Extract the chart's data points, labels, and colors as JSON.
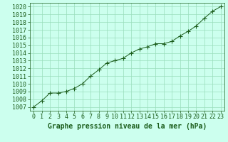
{
  "x": [
    0,
    1,
    2,
    3,
    4,
    5,
    6,
    7,
    8,
    9,
    10,
    11,
    12,
    13,
    14,
    15,
    16,
    17,
    18,
    19,
    20,
    21,
    22,
    23
  ],
  "y": [
    1007.0,
    1007.8,
    1008.8,
    1008.8,
    1009.0,
    1009.4,
    1010.0,
    1011.0,
    1011.8,
    1012.7,
    1013.0,
    1013.3,
    1014.0,
    1014.5,
    1014.8,
    1015.2,
    1015.2,
    1015.5,
    1016.2,
    1016.8,
    1017.5,
    1018.5,
    1019.4,
    1020.0
  ],
  "line_color": "#1a5c1a",
  "marker": "+",
  "marker_size": 4,
  "marker_color": "#1a5c1a",
  "bg_color": "#ccffee",
  "grid_color": "#99ddbb",
  "ylabel_ticks": [
    1007,
    1008,
    1009,
    1010,
    1011,
    1012,
    1013,
    1014,
    1015,
    1016,
    1017,
    1018,
    1019,
    1020
  ],
  "xlabel_label": "Graphe pression niveau de la mer (hPa)",
  "xlabel_color": "#1a5c1a",
  "tick_label_color": "#1a5c1a",
  "axis_color": "#1a5c1a",
  "ylim": [
    1006.5,
    1020.5
  ],
  "xlim": [
    -0.5,
    23.5
  ],
  "label_fontsize": 6,
  "xlabel_fontsize": 7
}
